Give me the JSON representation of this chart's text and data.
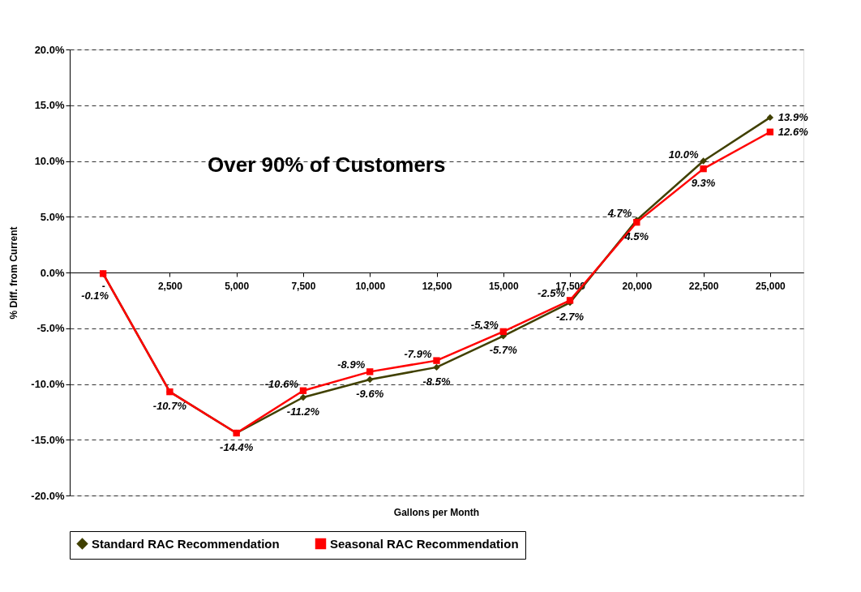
{
  "chart_data": {
    "type": "line",
    "xlabel": "Gallons per Month",
    "ylabel": "% Diff. from Current",
    "categories": [
      "-",
      "2,500",
      "5,000",
      "7,500",
      "10,000",
      "12,500",
      "15,000",
      "17,500",
      "20,000",
      "22,500",
      "25,000"
    ],
    "series": [
      {
        "name": "Standard RAC Recommendation",
        "color": "#404000",
        "marker": "diamond",
        "values": [
          -0.1,
          -10.7,
          -14.4,
          -11.2,
          -9.6,
          -8.5,
          -5.7,
          -2.7,
          4.7,
          10.0,
          13.9
        ],
        "value_labels": [
          "-0.1%",
          "-10.7%",
          "-14.4%",
          "-11.2%",
          "-9.6%",
          "-8.5%",
          "-5.7%",
          "-2.7%",
          "4.7%",
          "10.0%",
          "13.9%"
        ]
      },
      {
        "name": "Seasonal RAC Recommendation",
        "color": "#ff0000",
        "marker": "square",
        "values": [
          -0.1,
          -10.7,
          -14.4,
          -10.6,
          -8.9,
          -7.9,
          -5.3,
          -2.5,
          4.5,
          9.3,
          12.6
        ],
        "value_labels": [
          null,
          null,
          null,
          "-10.6%",
          "-8.9%",
          "-7.9%",
          "-5.3%",
          "-2.5%",
          "4.5%",
          "9.3%",
          "12.6%"
        ]
      }
    ],
    "ylim": [
      -20,
      20
    ],
    "yticks": [
      {
        "value": -20,
        "label": "-20.0%"
      },
      {
        "value": -15,
        "label": "-15.0%"
      },
      {
        "value": -10,
        "label": "-10.0%"
      },
      {
        "value": -5,
        "label": "-5.0%"
      },
      {
        "value": 0,
        "label": "0.0%"
      },
      {
        "value": 5,
        "label": "5.0%"
      },
      {
        "value": 10,
        "label": "10.0%"
      },
      {
        "value": 15,
        "label": "15.0%"
      },
      {
        "value": 20,
        "label": "20.0%"
      }
    ],
    "grid": "y",
    "legend": "bottom",
    "line_style": "solid",
    "annotations": [
      "Over 90% of Customers"
    ]
  }
}
